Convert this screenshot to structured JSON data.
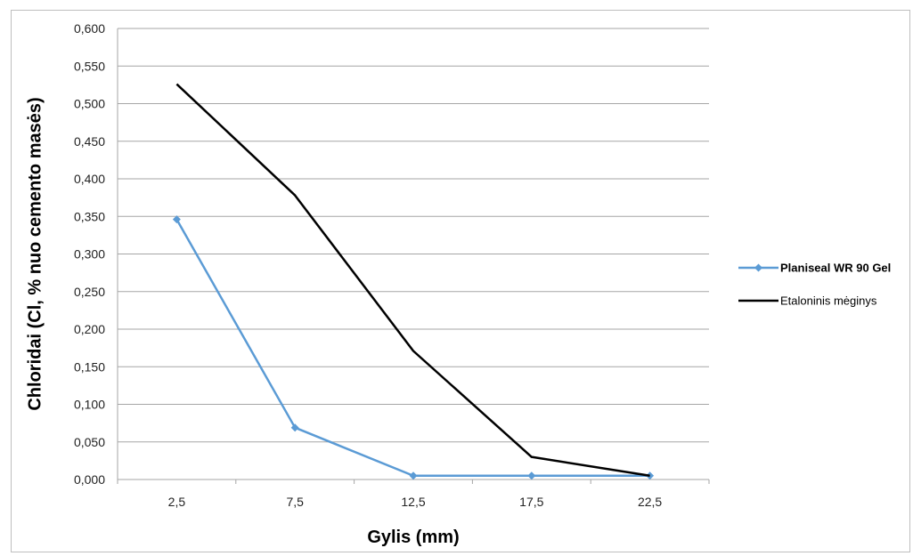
{
  "chart_data": {
    "type": "line",
    "title": "",
    "xlabel": "Gylis (mm)",
    "ylabel": "Chloridai (Cl, % nuo cemento masės)",
    "categories": [
      "2,5",
      "7,5",
      "12,5",
      "17,5",
      "22,5"
    ],
    "ylim": [
      0,
      0.6
    ],
    "y_ticks": [
      "0,000",
      "0,050",
      "0,100",
      "0,150",
      "0,200",
      "0,250",
      "0,300",
      "0,350",
      "0,400",
      "0,450",
      "0,500",
      "0,550",
      "0,600"
    ],
    "grid": "horizontal",
    "legend_position": "right",
    "series": [
      {
        "name": "Planiseal WR 90 Gel",
        "values": [
          0.346,
          0.069,
          0.005,
          0.005,
          0.005
        ],
        "color": "#5b9bd5",
        "marker": "diamond",
        "legend_bold": true
      },
      {
        "name": "Etaloninis mėginys",
        "values": [
          0.526,
          0.378,
          0.171,
          0.03,
          0.005
        ],
        "color": "#000000",
        "marker": "none",
        "legend_bold": false
      }
    ]
  }
}
